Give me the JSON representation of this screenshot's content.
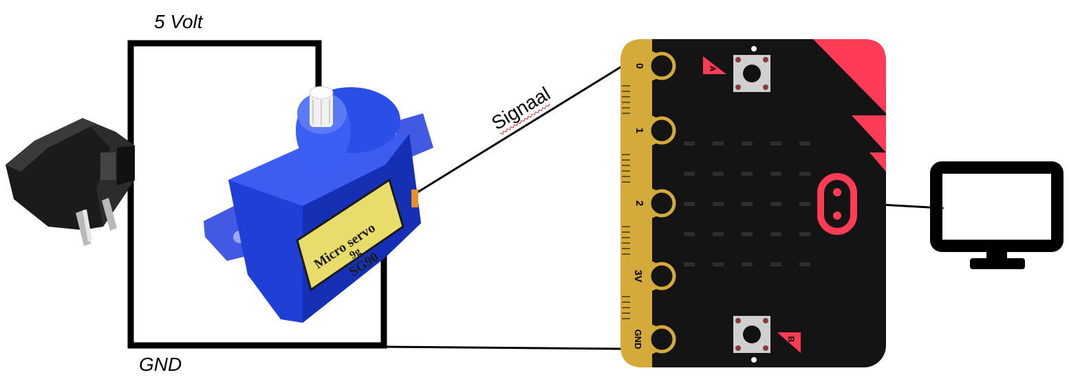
{
  "labels": {
    "voltage": "5 Volt",
    "ground": "GND",
    "signal": "Signaal"
  },
  "servo": {
    "line1": "Micro servo",
    "line2": "9g",
    "line3": "SG90"
  },
  "microbit": {
    "pins": [
      "0",
      "1",
      "2",
      "3V",
      "GND"
    ],
    "button_a": "A",
    "button_b": "B"
  },
  "colors": {
    "wire": "#000000",
    "servo_body": "#1f3fd6",
    "microbit_board": "#141414",
    "microbit_accent": "#ff3c55",
    "edge_connector": "#d4aa3a",
    "adapter": "#1b1b1b"
  },
  "icons": [
    "power-adapter-icon",
    "servo-motor-icon",
    "microbit-board-icon",
    "monitor-icon"
  ]
}
